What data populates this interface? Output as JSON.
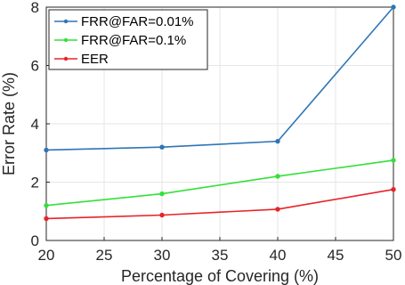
{
  "chart_data": {
    "type": "line",
    "title": "",
    "xlabel": "Percentage of Covering (%)",
    "ylabel": "Error Rate (%)",
    "x": [
      20,
      30,
      40,
      50
    ],
    "xlim": [
      20,
      50
    ],
    "ylim": [
      0,
      8
    ],
    "xticks": [
      "20",
      "25",
      "30",
      "35",
      "40",
      "45",
      "50"
    ],
    "yticks": [
      "0",
      "2",
      "4",
      "6",
      "8"
    ],
    "grid": true,
    "legend_position": "top-left",
    "series": [
      {
        "name": "FRR@FAR=0.01%",
        "values": [
          3.1,
          3.2,
          3.4,
          8.0
        ],
        "color": "#2e75b6",
        "marker": "dot"
      },
      {
        "name": "FRR@FAR=0.1%",
        "values": [
          1.2,
          1.6,
          2.2,
          2.75
        ],
        "color": "#33e03a",
        "marker": "dot"
      },
      {
        "name": "EER",
        "values": [
          0.75,
          0.87,
          1.07,
          1.75
        ],
        "color": "#e8232a",
        "marker": "dot"
      }
    ]
  }
}
